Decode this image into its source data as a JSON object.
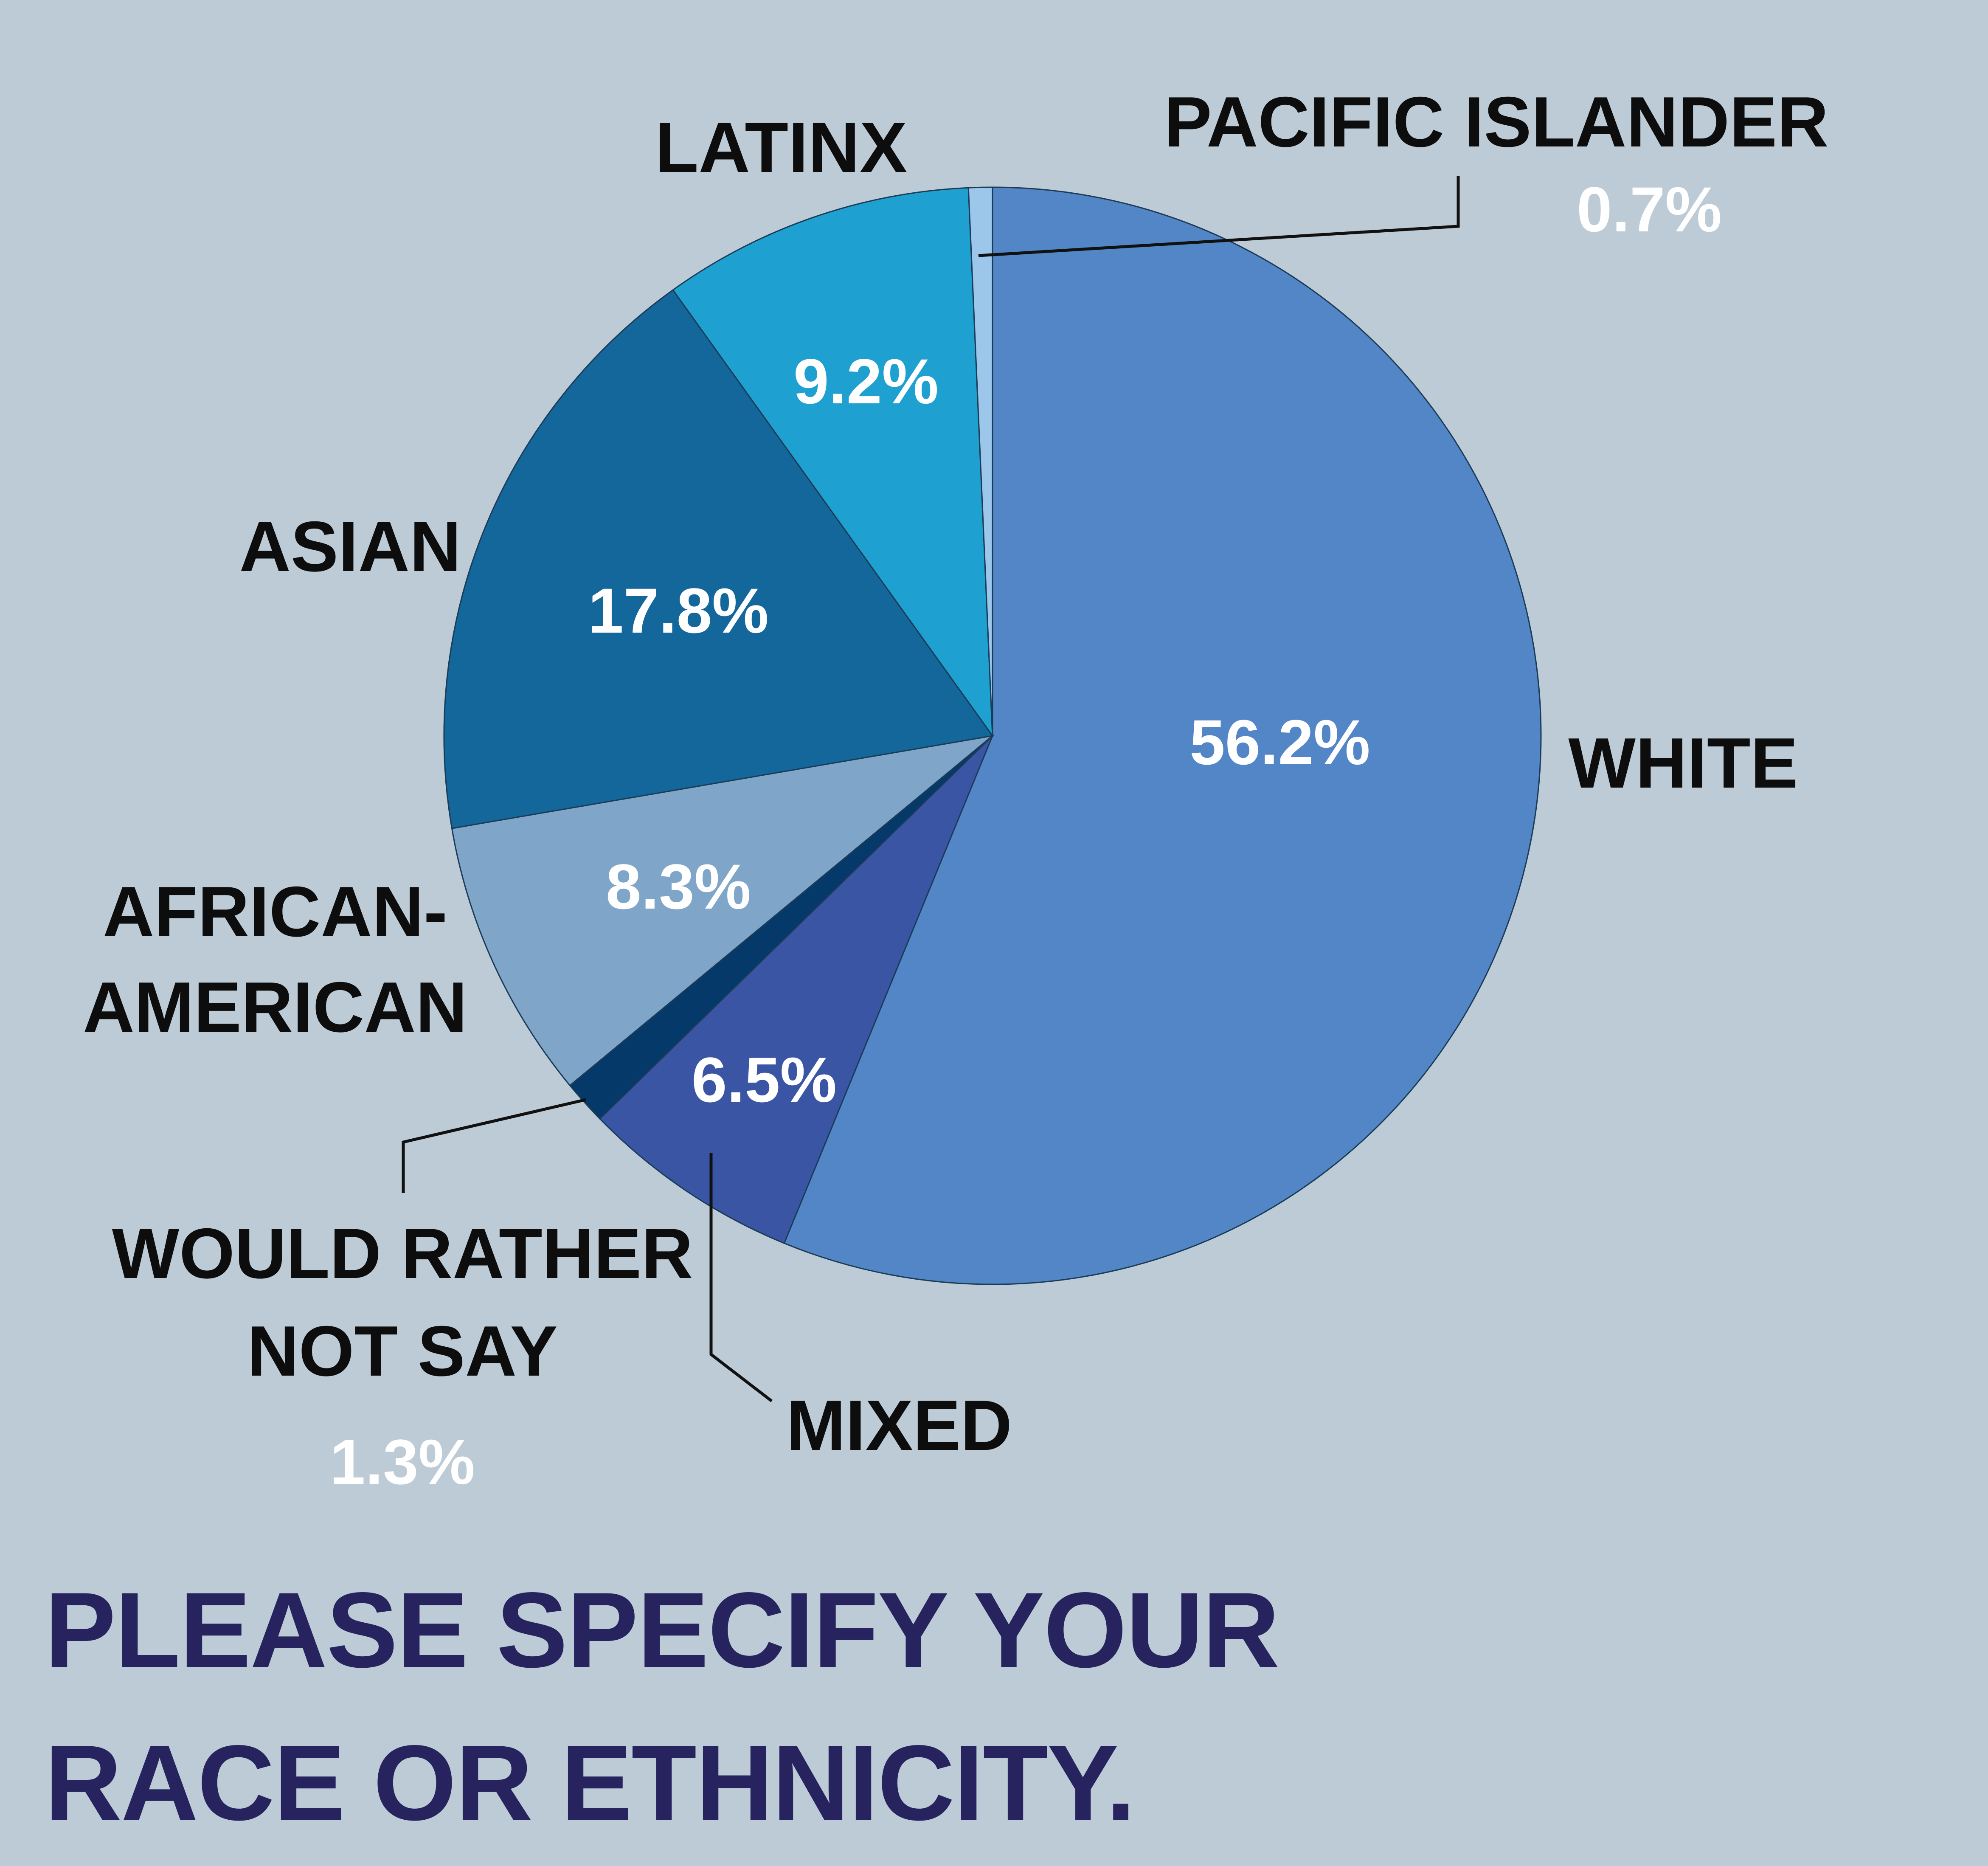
{
  "title_lines": [
    "PLEASE SPECIFY YOUR",
    "RACE OR ETHNICITY."
  ],
  "chart_data": {
    "type": "pie",
    "title": "PLEASE SPECIFY YOUR RACE OR ETHNICITY.",
    "legend": "none",
    "start_angle_deg": 0,
    "direction": "clockwise",
    "slices": [
      {
        "label": "WHITE",
        "label_lines": [
          "WHITE"
        ],
        "value": 56.2,
        "value_text": "56.2%",
        "color": "#5286c6"
      },
      {
        "label": "MIXED",
        "label_lines": [
          "MIXED"
        ],
        "value": 6.5,
        "value_text": "6.5%",
        "color": "#3b55a5"
      },
      {
        "label": "WOULD RATHER NOT SAY",
        "label_lines": [
          "WOULD RATHER",
          "NOT SAY"
        ],
        "value": 1.3,
        "value_text": "1.3%",
        "color": "#05396a"
      },
      {
        "label": "AFRICAN-AMERICAN",
        "label_lines": [
          "AFRICAN-",
          "AMERICAN"
        ],
        "value": 8.3,
        "value_text": "8.3%",
        "color": "#7fa6c8"
      },
      {
        "label": "ASIAN",
        "label_lines": [
          "ASIAN"
        ],
        "value": 17.8,
        "value_text": "17.8%",
        "color": "#13679b"
      },
      {
        "label": "LATINX",
        "label_lines": [
          "LATINX"
        ],
        "value": 9.2,
        "value_text": "9.2%",
        "color": "#1ea1d1"
      },
      {
        "label": "PACIFIC ISLANDER",
        "label_lines": [
          "PACIFIC ISLANDER"
        ],
        "value": 0.7,
        "value_text": "0.7%",
        "color": "#9cc7ea"
      }
    ]
  }
}
